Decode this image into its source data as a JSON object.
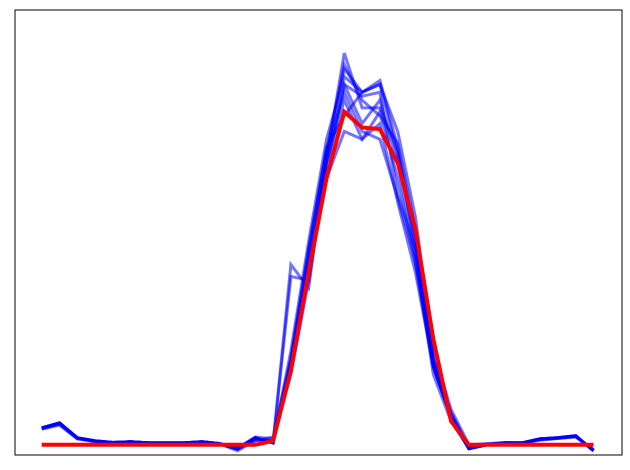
{
  "chart_data": {
    "type": "line",
    "title": "",
    "xlabel": "",
    "ylabel": "",
    "grid": false,
    "ticks_shown": false,
    "x": [
      0,
      1,
      2,
      3,
      4,
      5,
      6,
      7,
      8,
      9,
      10,
      11,
      12,
      13,
      14,
      15,
      16,
      17,
      18,
      19,
      20,
      21,
      22,
      23,
      24,
      25,
      26,
      27,
      28,
      29,
      30,
      31
    ],
    "xlim": [
      -1.5,
      32.6
    ],
    "ylim": [
      -0.026,
      1.11
    ],
    "colors": {
      "samples": "#0000ff",
      "mean": "#ff0000"
    },
    "series": [
      {
        "role": "sample",
        "values": [
          0.043,
          0.056,
          0.018,
          0.01,
          0.006,
          0.008,
          0.005,
          0.005,
          0.005,
          0.008,
          0.003,
          -0.01,
          0.018,
          0.005,
          0.2,
          0.47,
          0.73,
          1.0,
          0.86,
          0.86,
          0.75,
          0.5,
          0.2,
          0.07,
          -0.01,
          0.0,
          0.005,
          0.005,
          0.015,
          0.018,
          0.023,
          -0.015
        ]
      },
      {
        "role": "sample",
        "values": [
          0.04,
          0.05,
          0.015,
          0.008,
          0.005,
          0.006,
          0.004,
          0.004,
          0.004,
          0.006,
          0.002,
          -0.015,
          0.01,
          0.02,
          0.22,
          0.5,
          0.75,
          0.97,
          0.88,
          0.84,
          0.77,
          0.55,
          0.22,
          0.08,
          -0.005,
          0.002,
          0.006,
          0.004,
          0.012,
          0.016,
          0.02,
          -0.012
        ]
      },
      {
        "role": "sample",
        "values": [
          0.042,
          0.054,
          0.017,
          0.009,
          0.006,
          0.007,
          0.005,
          0.005,
          0.005,
          0.007,
          0.003,
          -0.012,
          0.015,
          0.01,
          0.24,
          0.52,
          0.78,
          0.94,
          0.9,
          0.92,
          0.8,
          0.58,
          0.24,
          0.09,
          0.0,
          0.003,
          0.005,
          0.005,
          0.014,
          0.017,
          0.022,
          -0.014
        ]
      },
      {
        "role": "sample",
        "values": [
          0.043,
          0.055,
          0.018,
          0.01,
          0.006,
          0.008,
          0.005,
          0.005,
          0.005,
          0.008,
          0.003,
          -0.008,
          0.02,
          0.015,
          0.18,
          0.42,
          0.7,
          0.92,
          0.82,
          0.88,
          0.72,
          0.48,
          0.18,
          0.06,
          -0.01,
          0.0,
          0.005,
          0.005,
          0.015,
          0.018,
          0.023,
          -0.015
        ]
      },
      {
        "role": "sample",
        "values": [
          0.041,
          0.053,
          0.016,
          0.009,
          0.005,
          0.007,
          0.004,
          0.004,
          0.004,
          0.007,
          0.002,
          -0.01,
          0.012,
          0.008,
          0.2,
          0.45,
          0.72,
          0.88,
          0.78,
          0.85,
          0.68,
          0.46,
          0.2,
          0.07,
          -0.008,
          0.001,
          0.005,
          0.005,
          0.013,
          0.017,
          0.021,
          -0.013
        ]
      },
      {
        "role": "sample",
        "values": [
          0.043,
          0.056,
          0.018,
          0.01,
          0.006,
          0.008,
          0.005,
          0.005,
          0.005,
          0.008,
          0.003,
          -0.01,
          0.018,
          0.005,
          0.2,
          0.44,
          0.68,
          0.8,
          0.78,
          0.82,
          0.62,
          0.44,
          0.2,
          0.07,
          -0.01,
          0.0,
          0.005,
          0.005,
          0.015,
          0.018,
          0.023,
          -0.015
        ]
      },
      {
        "role": "sample",
        "values": [
          0.043,
          0.056,
          0.018,
          0.01,
          0.006,
          0.008,
          0.005,
          0.005,
          0.005,
          0.008,
          0.003,
          -0.01,
          0.018,
          0.005,
          0.46,
          0.4,
          0.74,
          0.96,
          0.9,
          0.92,
          0.74,
          0.52,
          0.2,
          0.07,
          -0.01,
          0.0,
          0.005,
          0.005,
          0.015,
          0.018,
          0.023,
          -0.015
        ]
      },
      {
        "role": "sample",
        "values": [
          0.043,
          0.056,
          0.018,
          0.01,
          0.006,
          0.008,
          0.005,
          0.005,
          0.005,
          0.008,
          0.003,
          -0.01,
          0.018,
          0.005,
          0.43,
          0.42,
          0.72,
          0.92,
          0.89,
          0.9,
          0.64,
          0.5,
          0.21,
          0.07,
          -0.01,
          0.0,
          0.005,
          0.005,
          0.015,
          0.018,
          0.023,
          -0.015
        ]
      },
      {
        "role": "sample",
        "values": [
          0.043,
          0.056,
          0.018,
          0.01,
          0.006,
          0.008,
          0.005,
          0.005,
          0.005,
          0.008,
          0.003,
          -0.01,
          0.018,
          0.005,
          0.22,
          0.5,
          0.76,
          0.84,
          0.9,
          0.93,
          0.76,
          0.53,
          0.22,
          0.08,
          -0.01,
          0.0,
          0.005,
          0.005,
          0.015,
          0.018,
          0.023,
          -0.015
        ]
      },
      {
        "role": "sample",
        "values": [
          0.043,
          0.056,
          0.018,
          0.01,
          0.006,
          0.008,
          0.005,
          0.005,
          0.005,
          0.008,
          0.003,
          -0.01,
          0.018,
          0.005,
          0.21,
          0.48,
          0.75,
          0.9,
          0.8,
          0.78,
          0.63,
          0.47,
          0.21,
          0.07,
          -0.01,
          0.0,
          0.005,
          0.005,
          0.015,
          0.018,
          0.023,
          -0.015
        ]
      },
      {
        "role": "mean",
        "values": [
          0,
          0,
          0,
          0,
          0,
          0,
          0,
          0,
          0,
          0,
          0,
          0,
          0,
          0.01,
          0.19,
          0.44,
          0.68,
          0.85,
          0.81,
          0.806,
          0.72,
          0.55,
          0.27,
          0.06,
          0,
          0,
          0,
          0,
          0,
          0,
          0,
          0
        ]
      }
    ]
  }
}
